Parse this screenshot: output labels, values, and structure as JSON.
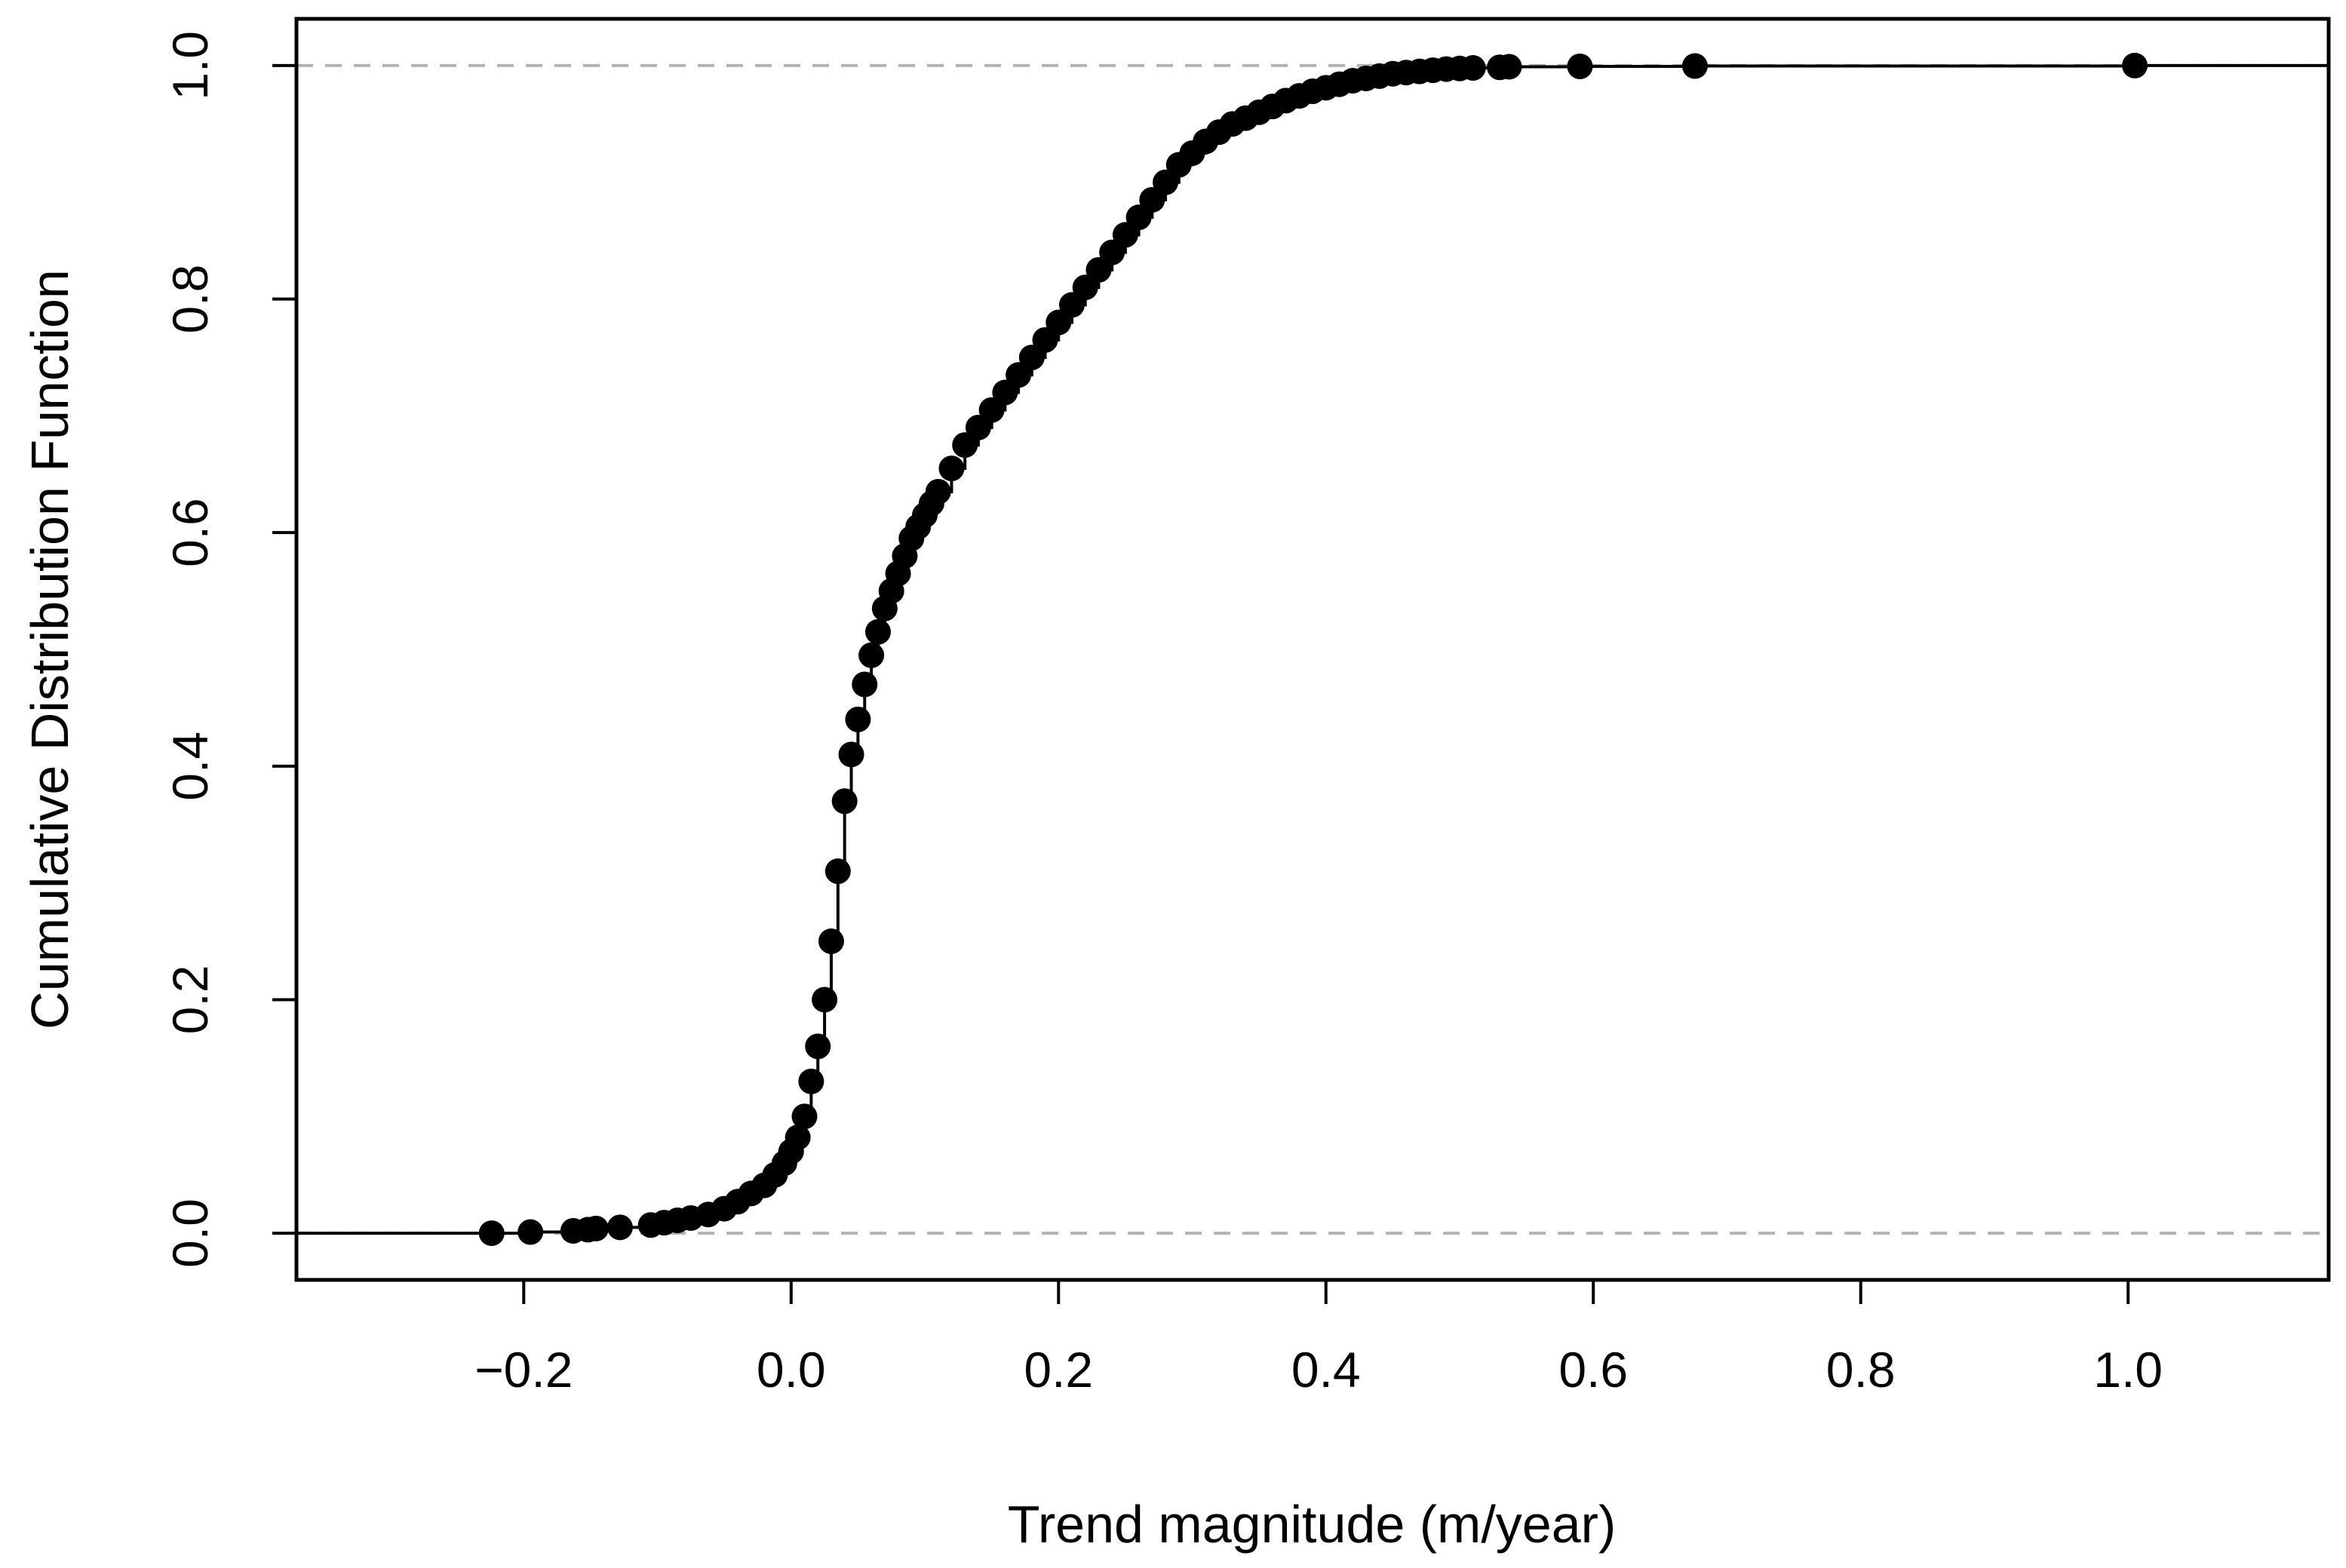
{
  "chart_data": {
    "type": "scatter",
    "title": "",
    "xlabel": "Trend magnitude (m/year)",
    "ylabel": "Cumulative Distribution Function",
    "xlim": [
      -0.37,
      1.15
    ],
    "ylim": [
      -0.04,
      1.04
    ],
    "xticks": [
      -0.2,
      0.0,
      0.2,
      0.4,
      0.6,
      0.8,
      1.0
    ],
    "xtick_labels": [
      "−0.2",
      "0.0",
      "0.2",
      "0.4",
      "0.6",
      "0.8",
      "1.0"
    ],
    "yticks": [
      0.0,
      0.2,
      0.4,
      0.6,
      0.8,
      1.0
    ],
    "ytick_labels": [
      "0.0",
      "0.2",
      "0.4",
      "0.6",
      "0.8",
      "1.0"
    ],
    "reference_lines": [
      0.0,
      1.0
    ],
    "grid": false,
    "legend": "none",
    "colors": {
      "points": "#000000",
      "step_line": "#000000",
      "reference_line": "#b3b3b3",
      "frame": "#000000"
    },
    "series": [
      {
        "x": [
          -0.224,
          -0.195,
          -0.163,
          -0.152,
          -0.146,
          -0.128,
          -0.105,
          -0.095,
          -0.085,
          -0.075,
          -0.062,
          -0.05,
          -0.04,
          -0.03,
          -0.02,
          -0.012,
          -0.005,
          0.0,
          0.005,
          0.01,
          0.015,
          0.02,
          0.025,
          0.03,
          0.035,
          0.04,
          0.045,
          0.05,
          0.055,
          0.06,
          0.065,
          0.07,
          0.075,
          0.08,
          0.085,
          0.09,
          0.095,
          0.1,
          0.105,
          0.11,
          0.12,
          0.13,
          0.14,
          0.15,
          0.16,
          0.17,
          0.18,
          0.19,
          0.2,
          0.21,
          0.22,
          0.23,
          0.24,
          0.25,
          0.26,
          0.27,
          0.28,
          0.29,
          0.3,
          0.31,
          0.32,
          0.33,
          0.34,
          0.35,
          0.36,
          0.37,
          0.38,
          0.39,
          0.4,
          0.41,
          0.42,
          0.43,
          0.44,
          0.45,
          0.46,
          0.47,
          0.48,
          0.49,
          0.5,
          0.51,
          0.53,
          0.537,
          0.59,
          0.676,
          1.005
        ],
        "y": [
          0.0,
          0.001,
          0.002,
          0.003,
          0.004,
          0.005,
          0.007,
          0.009,
          0.011,
          0.013,
          0.016,
          0.021,
          0.027,
          0.034,
          0.041,
          0.05,
          0.06,
          0.07,
          0.082,
          0.1,
          0.13,
          0.16,
          0.2,
          0.25,
          0.31,
          0.37,
          0.41,
          0.44,
          0.47,
          0.495,
          0.515,
          0.535,
          0.55,
          0.565,
          0.58,
          0.595,
          0.605,
          0.615,
          0.625,
          0.635,
          0.655,
          0.675,
          0.69,
          0.705,
          0.72,
          0.735,
          0.75,
          0.765,
          0.78,
          0.795,
          0.81,
          0.825,
          0.84,
          0.855,
          0.87,
          0.885,
          0.9,
          0.915,
          0.925,
          0.935,
          0.943,
          0.95,
          0.955,
          0.96,
          0.965,
          0.97,
          0.974,
          0.978,
          0.981,
          0.984,
          0.987,
          0.989,
          0.991,
          0.993,
          0.994,
          0.995,
          0.996,
          0.997,
          0.9975,
          0.998,
          0.9985,
          0.999,
          0.9993,
          0.9996,
          1.0
        ]
      }
    ]
  }
}
